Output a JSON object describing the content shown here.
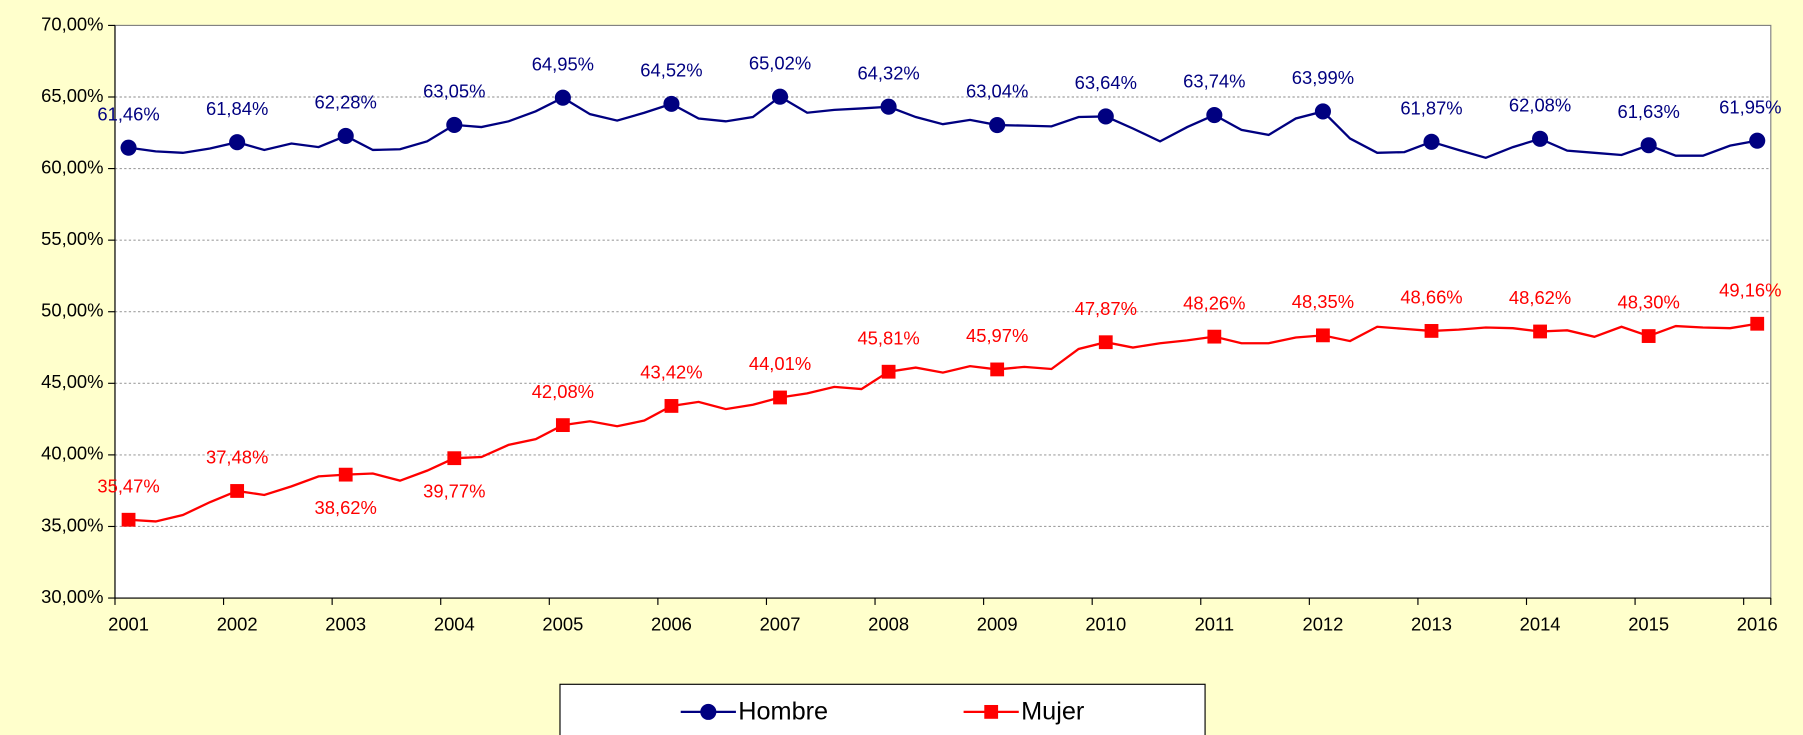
{
  "chart_data": {
    "type": "line",
    "categories": [
      "2001",
      null,
      null,
      null,
      "2002",
      null,
      null,
      null,
      "2003",
      null,
      null,
      null,
      "2004",
      null,
      null,
      null,
      "2005",
      null,
      null,
      null,
      "2006",
      null,
      null,
      null,
      "2007",
      null,
      null,
      null,
      "2008",
      null,
      null,
      null,
      "2009",
      null,
      null,
      null,
      "2010",
      null,
      null,
      null,
      "2011",
      null,
      null,
      null,
      "2012",
      null,
      null,
      null,
      "2013",
      null,
      null,
      null,
      "2014",
      null,
      null,
      null,
      "2015",
      null,
      null,
      null,
      "2016"
    ],
    "series": [
      {
        "name": "Hombre",
        "color": "#000080",
        "marker": "circle",
        "values": [
          61.46,
          61.2,
          61.1,
          61.4,
          61.84,
          61.3,
          61.75,
          61.5,
          62.28,
          61.3,
          61.35,
          61.9,
          63.05,
          62.9,
          63.3,
          64.0,
          64.95,
          63.8,
          63.35,
          63.9,
          64.52,
          63.5,
          63.3,
          63.6,
          65.02,
          63.9,
          64.1,
          64.2,
          64.32,
          63.6,
          63.1,
          63.4,
          63.04,
          63.0,
          62.95,
          63.6,
          63.64,
          62.8,
          61.9,
          62.9,
          63.74,
          62.7,
          62.35,
          63.5,
          63.99,
          62.1,
          61.1,
          61.15,
          61.87,
          61.3,
          60.75,
          61.5,
          62.08,
          61.25,
          61.1,
          60.95,
          61.63,
          60.9,
          60.9,
          61.6,
          61.95
        ],
        "value_labels": [
          "61,46%",
          null,
          null,
          null,
          "61,84%",
          null,
          null,
          null,
          "62,28%",
          null,
          null,
          null,
          "63,05%",
          null,
          null,
          null,
          "64,95%",
          null,
          null,
          null,
          "64,52%",
          null,
          null,
          null,
          "65,02%",
          null,
          null,
          null,
          "64,32%",
          null,
          null,
          null,
          "63,04%",
          null,
          null,
          null,
          "63,64%",
          null,
          null,
          null,
          "63,74%",
          null,
          null,
          null,
          "63,99%",
          null,
          null,
          null,
          "61,87%",
          null,
          null,
          null,
          "62,08%",
          null,
          null,
          null,
          "61,63%",
          null,
          null,
          null,
          "61,95%"
        ]
      },
      {
        "name": "Mujer",
        "color": "#ff0000",
        "marker": "square",
        "values": [
          35.47,
          35.35,
          35.8,
          36.7,
          37.48,
          37.2,
          37.8,
          38.5,
          38.62,
          38.7,
          38.2,
          38.9,
          39.77,
          39.85,
          40.7,
          41.1,
          42.08,
          42.35,
          42.0,
          42.4,
          43.42,
          43.7,
          43.2,
          43.5,
          44.01,
          44.3,
          44.75,
          44.6,
          45.81,
          46.1,
          45.75,
          46.2,
          45.97,
          46.15,
          46.0,
          47.4,
          47.87,
          47.5,
          47.8,
          48.0,
          48.26,
          47.8,
          47.8,
          48.2,
          48.35,
          47.95,
          48.95,
          48.8,
          48.66,
          48.75,
          48.9,
          48.85,
          48.62,
          48.7,
          48.25,
          48.95,
          48.3,
          49.0,
          48.9,
          48.85,
          49.16
        ],
        "value_labels": [
          "35,47%",
          null,
          null,
          null,
          "37,48%",
          null,
          null,
          null,
          "38,62%",
          null,
          null,
          null,
          "39,77%",
          null,
          null,
          null,
          "42,08%",
          null,
          null,
          null,
          "43,42%",
          null,
          null,
          null,
          "44,01%",
          null,
          null,
          null,
          "45,81%",
          null,
          null,
          null,
          "45,97%",
          null,
          null,
          null,
          "47,87%",
          null,
          null,
          null,
          "48,26%",
          null,
          null,
          null,
          "48,35%",
          null,
          null,
          null,
          "48,66%",
          null,
          null,
          null,
          "48,62%",
          null,
          null,
          null,
          "48,30%",
          null,
          null,
          null,
          "49,16%"
        ]
      }
    ],
    "ylim": [
      30,
      70
    ],
    "yticks": [
      {
        "value": 30,
        "label": "30,00%"
      },
      {
        "value": 35,
        "label": "35,00%"
      },
      {
        "value": 40,
        "label": "40,00%"
      },
      {
        "value": 45,
        "label": "45,00%"
      },
      {
        "value": 50,
        "label": "50,00%"
      },
      {
        "value": 55,
        "label": "55,00%"
      },
      {
        "value": 60,
        "label": "60,00%"
      },
      {
        "value": 65,
        "label": "65,00%"
      },
      {
        "value": 70,
        "label": "70,00%"
      }
    ],
    "grid": true,
    "legend": "bottom"
  }
}
